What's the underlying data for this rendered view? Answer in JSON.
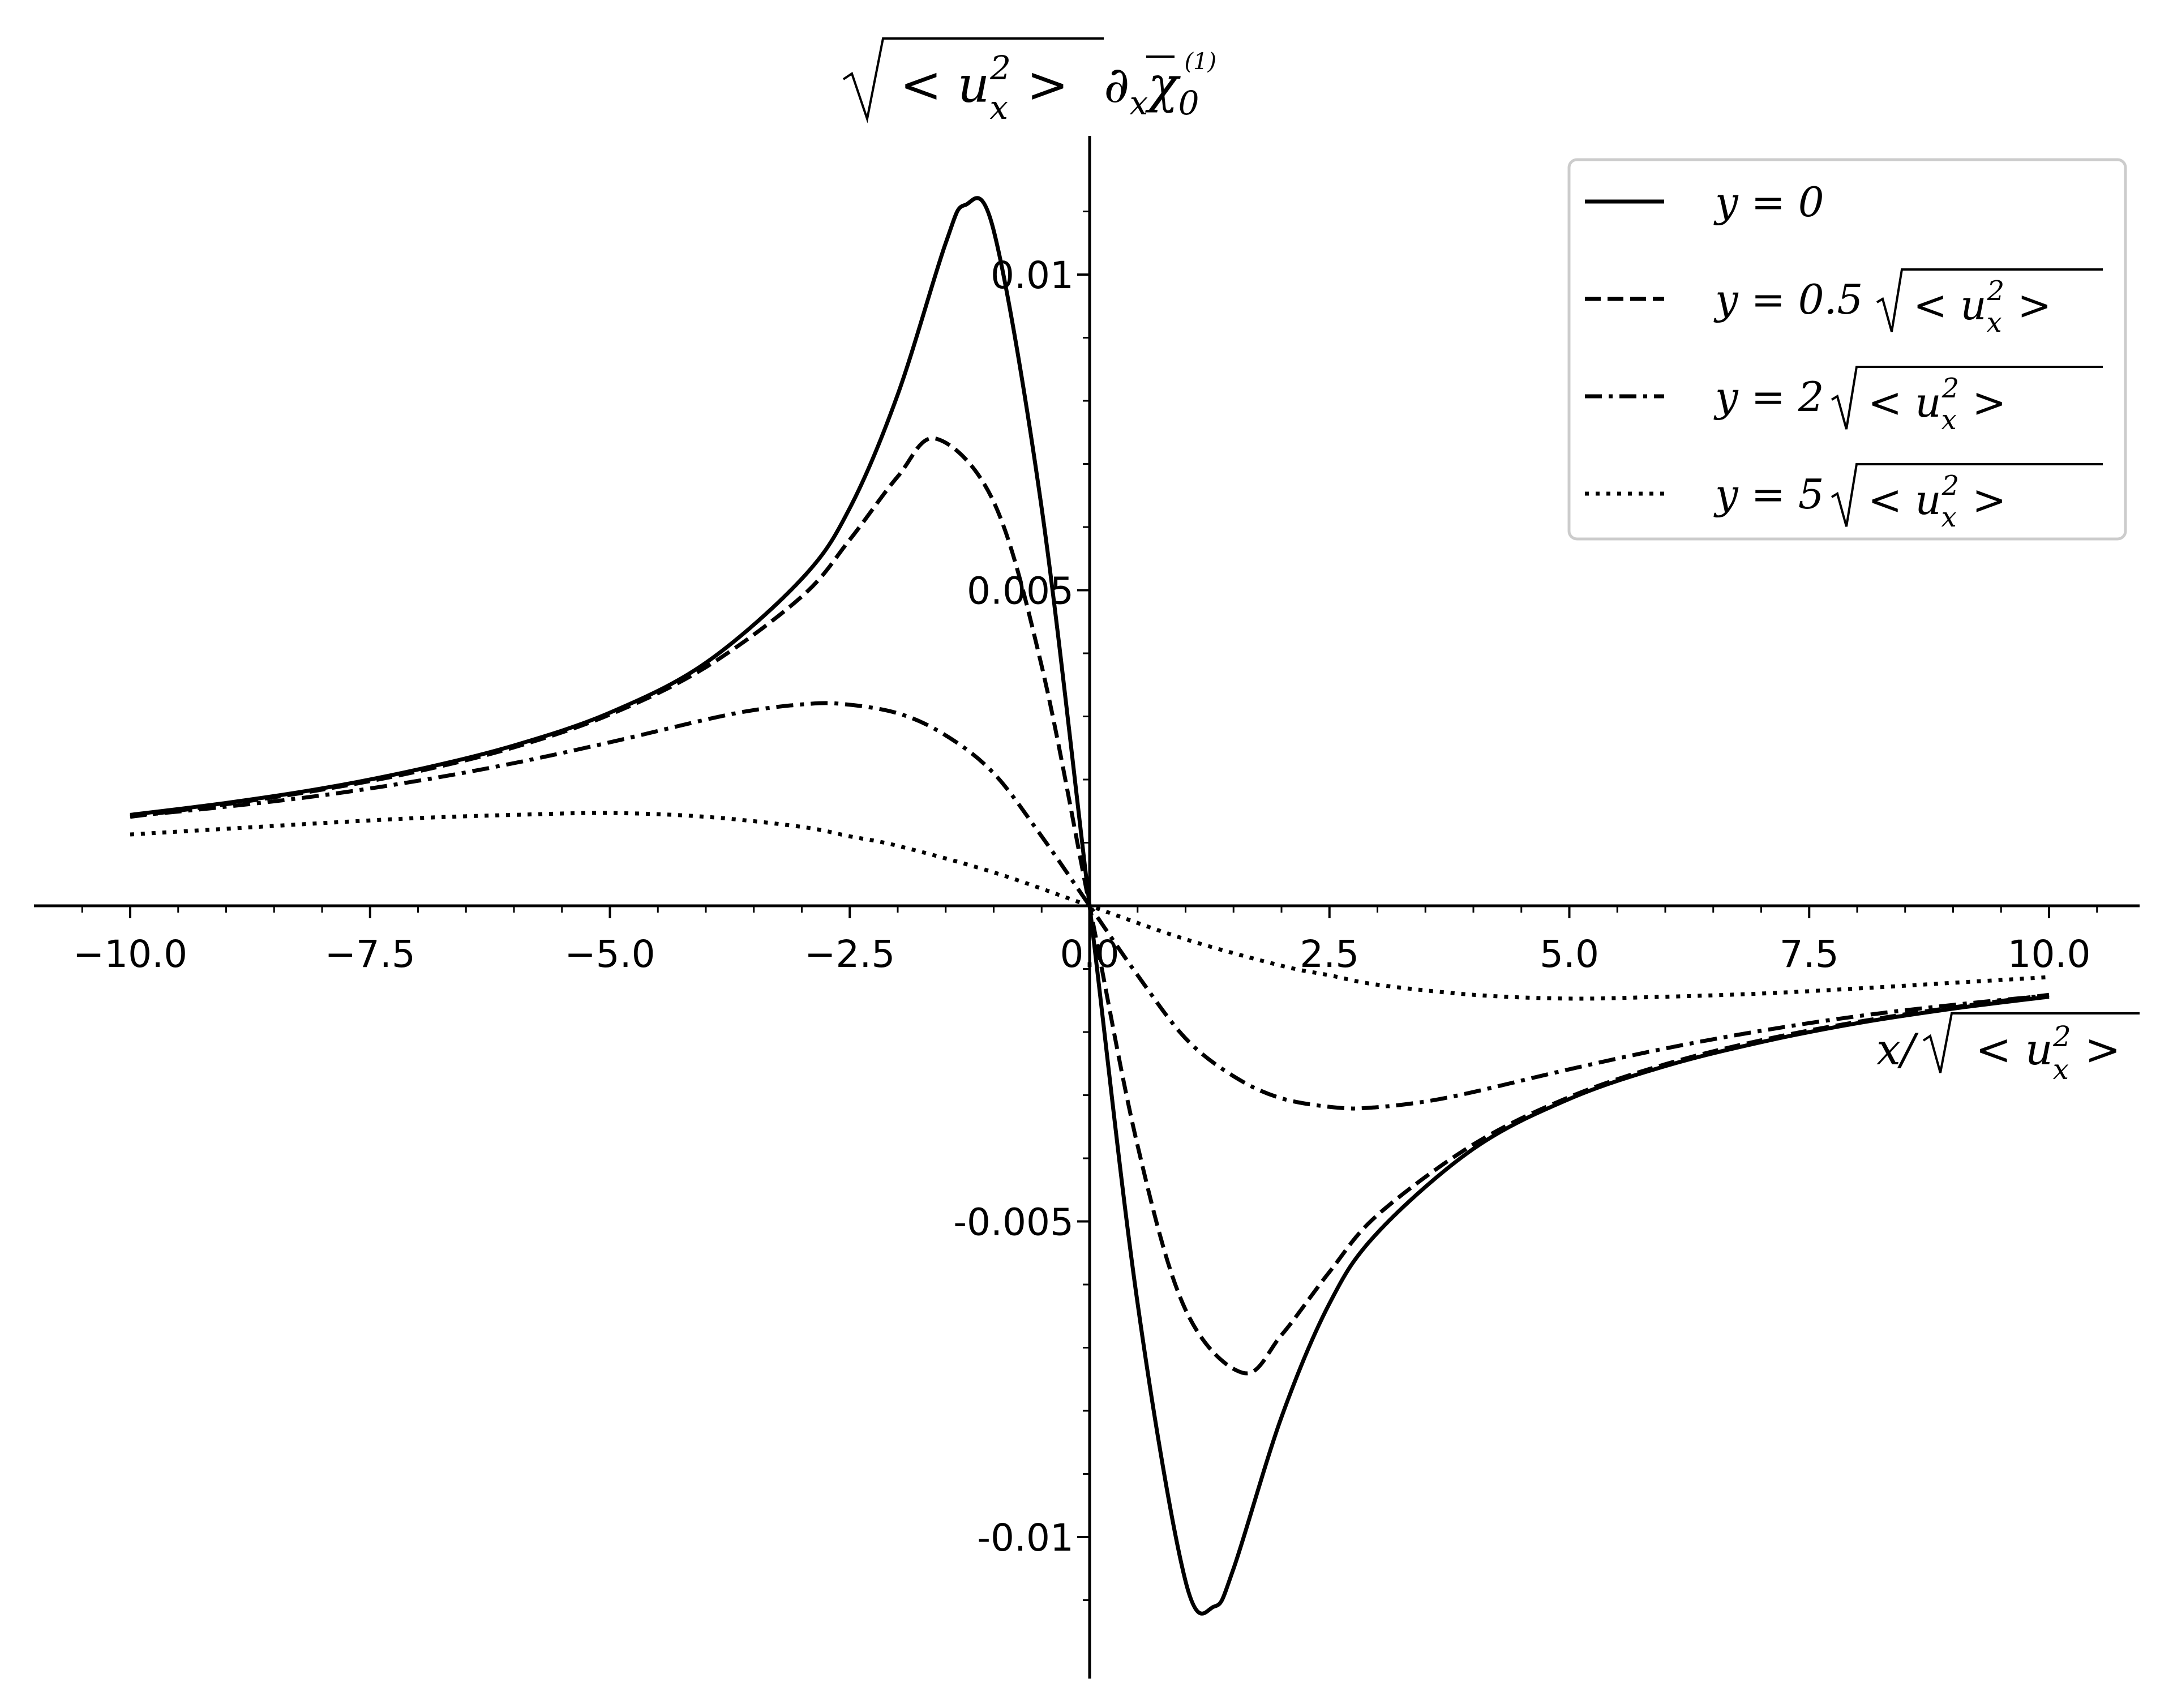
{
  "chart_data": {
    "type": "line",
    "ylabel": "√ <u_x²> ∂_x χ̄_0^(1)",
    "xlabel": "x/√ <u_x²>",
    "xlim": [
      -11.0,
      11.0
    ],
    "ylim": [
      -0.0123,
      0.0122
    ],
    "grid": false,
    "legend_position": "top-right",
    "x_ticks": [
      "−10.0",
      "−7.5",
      "−5.0",
      "−2.5",
      "0.0",
      "2.5",
      "5.0",
      "7.5",
      "10.0"
    ],
    "y_ticks": [
      "0.01",
      "0.005",
      "-0.005",
      "-0.01"
    ],
    "ylabel_parts": {
      "root": "< u",
      "sub": "x",
      "sup": "2",
      "gt": " >",
      "deriv": "∂",
      "dsub": "x",
      "chi": "χ",
      "chisub": "0",
      "chisup": "(1)"
    },
    "xlabel_parts": {
      "x": "x/",
      "root": "< u",
      "sub": "x",
      "sup": "2",
      "gt": " >"
    },
    "series": [
      {
        "legend": "y = 0",
        "legend_parts": {
          "lhs": "y = 0",
          "coef": ""
        },
        "dash": "solid",
        "x": [
          -10,
          -9,
          -8,
          -7,
          -6,
          -5,
          -4,
          -3,
          -2.5,
          -2,
          -1.5,
          -1.3,
          -1,
          -0.5,
          0,
          0.5,
          1,
          1.3,
          1.5,
          2,
          2.5,
          3,
          4,
          5,
          6,
          7,
          8,
          9,
          10
        ],
        "values": [
          0.00144,
          0.00163,
          0.00186,
          0.00216,
          0.00254,
          0.00306,
          0.00385,
          0.00518,
          0.0063,
          0.0081,
          0.0105,
          0.0111,
          0.0107,
          0.0063,
          0.0,
          -0.0063,
          -0.0107,
          -0.0111,
          -0.0105,
          -0.0081,
          -0.0063,
          -0.00518,
          -0.00385,
          -0.00306,
          -0.00254,
          -0.00216,
          -0.00186,
          -0.00163,
          -0.00144
        ]
      },
      {
        "legend": "y = 0.5√ <u_x²>",
        "legend_parts": {
          "lhs": "y = 0.5",
          "coef": "0.5"
        },
        "dash": "dashed",
        "x": [
          -10,
          -9,
          -8,
          -7,
          -6,
          -5,
          -4,
          -3,
          -2.5,
          -2,
          -1.6,
          -1,
          -0.5,
          0,
          0.5,
          1,
          1.6,
          2,
          2.5,
          3,
          4,
          5,
          6,
          7,
          8,
          9,
          10
        ],
        "values": [
          0.00141,
          0.00161,
          0.00184,
          0.00213,
          0.00251,
          0.00303,
          0.00378,
          0.0049,
          0.0058,
          0.0068,
          0.0074,
          0.0064,
          0.0038,
          0.0,
          -0.0038,
          -0.0064,
          -0.0074,
          -0.0068,
          -0.0058,
          -0.0049,
          -0.00378,
          -0.00303,
          -0.00251,
          -0.00213,
          -0.00184,
          -0.00161,
          -0.00141
        ]
      },
      {
        "legend": "y = 2√ <u_x²>",
        "legend_parts": {
          "lhs": "y = 2",
          "coef": "2"
        },
        "dash": "dashdot",
        "x": [
          -10,
          -9,
          -8,
          -7,
          -6,
          -5,
          -4,
          -3.5,
          -3,
          -2.6,
          -2,
          -1.5,
          -1,
          -0.5,
          0,
          0.5,
          1,
          1.5,
          2,
          2.6,
          3,
          3.5,
          4,
          5,
          6,
          7,
          8,
          9,
          10
        ],
        "values": [
          0.00142,
          0.00157,
          0.00175,
          0.00198,
          0.00226,
          0.00259,
          0.00295,
          0.0031,
          0.00319,
          0.0032,
          0.00305,
          0.0027,
          0.0021,
          0.0011,
          0.0,
          -0.0011,
          -0.0021,
          -0.0027,
          -0.00305,
          -0.0032,
          -0.00319,
          -0.0031,
          -0.00295,
          -0.00259,
          -0.00226,
          -0.00198,
          -0.00175,
          -0.00157,
          -0.00142
        ]
      },
      {
        "legend": "y = 5√ <u_x²>",
        "legend_parts": {
          "lhs": "y = 5",
          "coef": "5"
        },
        "dash": "dotted",
        "x": [
          -10,
          -9,
          -8,
          -7,
          -6,
          -5,
          -4,
          -3,
          -2.5,
          -2,
          -1,
          0,
          1,
          2,
          2.5,
          3,
          4,
          5,
          6,
          7,
          8,
          9,
          10
        ],
        "values": [
          0.00113,
          0.00122,
          0.00131,
          0.00139,
          0.00144,
          0.00147,
          0.00141,
          0.00125,
          0.0011,
          0.00095,
          0.00053,
          0.0,
          -0.00053,
          -0.00095,
          -0.0011,
          -0.00125,
          -0.00141,
          -0.00147,
          -0.00144,
          -0.00139,
          -0.00131,
          -0.00122,
          -0.00113
        ]
      }
    ],
    "legend_sqrt": {
      "root": "< u",
      "sub": "x",
      "sup": "2",
      "gt": " >"
    }
  }
}
